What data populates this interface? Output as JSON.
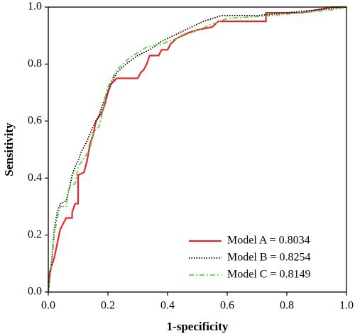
{
  "chart_data": {
    "type": "line",
    "xlabel": "1-specificity",
    "ylabel": "Sensitivity",
    "xlim": [
      0,
      1
    ],
    "ylim": [
      0,
      1
    ],
    "xticks": [
      {
        "value": 0,
        "label": "0.0"
      },
      0.2,
      0.4,
      0.6,
      0.8,
      {
        "value": 1,
        "label": "1.0"
      }
    ],
    "yticks": [
      {
        "value": 0,
        "label": "0.0"
      },
      0.2,
      0.4,
      0.6,
      0.8,
      {
        "value": 1,
        "label": "1.0"
      }
    ],
    "grid": false,
    "legend": "lower right",
    "series": [
      {
        "name": "Model A = 0.8034",
        "color": "#e8262a",
        "line_style": "solid",
        "x": [
          0,
          0.005,
          0.02,
          0.03,
          0.04,
          0.05,
          0.06,
          0.08,
          0.08,
          0.09,
          0.1,
          0.1,
          0.12,
          0.13,
          0.14,
          0.15,
          0.16,
          0.18,
          0.19,
          0.2,
          0.21,
          0.23,
          0.3,
          0.31,
          0.32,
          0.33,
          0.34,
          0.37,
          0.38,
          0.4,
          0.41,
          0.43,
          0.47,
          0.5,
          0.55,
          0.57,
          0.73,
          0.73,
          0.85,
          0.9,
          0.95,
          1
        ],
        "values": [
          0,
          0.07,
          0.12,
          0.17,
          0.22,
          0.24,
          0.26,
          0.26,
          0.28,
          0.31,
          0.31,
          0.41,
          0.42,
          0.46,
          0.52,
          0.55,
          0.6,
          0.63,
          0.66,
          0.7,
          0.73,
          0.75,
          0.75,
          0.77,
          0.78,
          0.8,
          0.83,
          0.83,
          0.85,
          0.85,
          0.87,
          0.89,
          0.91,
          0.92,
          0.93,
          0.95,
          0.95,
          0.98,
          0.98,
          0.99,
          1,
          1
        ]
      },
      {
        "name": "Model B = 0.8254",
        "color": "#000000",
        "line_style": "dotted",
        "x": [
          0,
          0.01,
          0.02,
          0.03,
          0.04,
          0.06,
          0.07,
          0.08,
          0.09,
          0.1,
          0.11,
          0.13,
          0.15,
          0.17,
          0.19,
          0.21,
          0.23,
          0.26,
          0.3,
          0.34,
          0.38,
          0.42,
          0.46,
          0.52,
          0.58,
          0.7,
          0.8,
          0.9,
          1
        ],
        "values": [
          0,
          0.1,
          0.22,
          0.28,
          0.31,
          0.32,
          0.36,
          0.41,
          0.44,
          0.46,
          0.49,
          0.53,
          0.58,
          0.62,
          0.68,
          0.73,
          0.77,
          0.8,
          0.83,
          0.85,
          0.88,
          0.9,
          0.92,
          0.95,
          0.97,
          0.97,
          0.98,
          0.99,
          1
        ]
      },
      {
        "name": "Model C = 0.8149",
        "color": "#5ecf50",
        "line_style": "dashdot",
        "x": [
          0,
          0.01,
          0.02,
          0.03,
          0.04,
          0.06,
          0.07,
          0.09,
          0.1,
          0.12,
          0.14,
          0.15,
          0.17,
          0.18,
          0.19,
          0.2,
          0.23,
          0.27,
          0.3,
          0.33,
          0.38,
          0.43,
          0.48,
          0.55,
          0.6,
          0.75,
          0.85,
          0.95,
          1
        ],
        "values": [
          0,
          0.08,
          0.2,
          0.26,
          0.3,
          0.3,
          0.37,
          0.38,
          0.44,
          0.47,
          0.5,
          0.56,
          0.58,
          0.62,
          0.68,
          0.72,
          0.78,
          0.82,
          0.84,
          0.86,
          0.87,
          0.89,
          0.91,
          0.94,
          0.96,
          0.97,
          0.98,
          0.99,
          1
        ]
      }
    ]
  }
}
